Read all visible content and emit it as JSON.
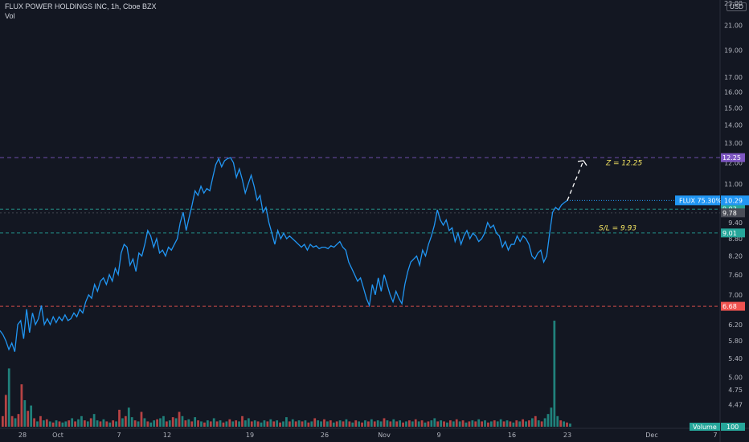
{
  "header": {
    "title": "FLUX POWER HOLDINGS INC, 1h, Cboe BZX",
    "indicator": "Vol",
    "currency": "USD"
  },
  "colors": {
    "background": "#131722",
    "price_line": "#2196f3",
    "vol_up": "#26a69a",
    "vol_down": "#ef5350",
    "resistance": "#7e57c2",
    "entry": "#26a69a",
    "support_low": "#ef5350",
    "annotation": "#f5e663"
  },
  "chart_data": {
    "type": "line",
    "y_axis": {
      "scale": "log",
      "range": [
        4.1,
        23.0
      ],
      "ticks": [
        "23.00",
        "21.00",
        "19.00",
        "17.00",
        "16.00",
        "15.00",
        "14.00",
        "13.00",
        "12.00",
        "11.00",
        "9.40",
        "8.80",
        "8.20",
        "7.60",
        "7.00",
        "6.20",
        "5.80",
        "5.40",
        "5.00",
        "4.75",
        "4.47"
      ]
    },
    "x_axis": {
      "labels": [
        "28",
        "Oct",
        "7",
        "12",
        "19",
        "26",
        "Nov",
        "9",
        "16",
        "23",
        "Dec",
        "7"
      ]
    },
    "series": [
      {
        "values": [
          6.05,
          5.95,
          5.8,
          5.6,
          5.75,
          5.55,
          6.2,
          6.3,
          5.85,
          6.6,
          6.0,
          6.5,
          6.2,
          6.35,
          6.7,
          6.2,
          6.35,
          6.2,
          6.4,
          6.25,
          6.4,
          6.3,
          6.45,
          6.3,
          6.35,
          6.5,
          6.4,
          6.6,
          6.5,
          6.8,
          7.0,
          6.9,
          7.3,
          7.1,
          7.4,
          7.5,
          7.3,
          7.6,
          7.4,
          7.8,
          7.6,
          8.3,
          8.6,
          8.5,
          7.9,
          8.1,
          7.7,
          8.3,
          8.2,
          8.6,
          9.1,
          8.9,
          8.5,
          8.8,
          8.3,
          8.4,
          8.2,
          8.5,
          8.4,
          8.6,
          8.8,
          9.4,
          9.8,
          9.1,
          9.6,
          10.1,
          10.7,
          10.5,
          10.9,
          10.6,
          10.8,
          10.7,
          11.3,
          11.9,
          12.2,
          11.8,
          12.1,
          12.2,
          12.25,
          12.0,
          11.3,
          11.7,
          11.2,
          10.6,
          11.0,
          11.4,
          10.9,
          10.3,
          10.5,
          9.8,
          10.0,
          9.4,
          9.0,
          8.6,
          9.1,
          8.8,
          9.0,
          8.8,
          8.9,
          8.8,
          8.7,
          8.6,
          8.5,
          8.6,
          8.4,
          8.6,
          8.5,
          8.55,
          8.45,
          8.5,
          8.5,
          8.45,
          8.55,
          8.5,
          8.6,
          8.7,
          8.5,
          8.4,
          8.0,
          7.8,
          7.6,
          7.4,
          7.5,
          7.2,
          6.9,
          6.7,
          7.3,
          7.0,
          7.5,
          7.1,
          7.6,
          7.3,
          7.0,
          6.8,
          7.1,
          6.9,
          6.75,
          7.3,
          7.7,
          8.0,
          8.1,
          8.2,
          7.9,
          8.4,
          8.2,
          8.6,
          8.9,
          9.3,
          9.9,
          9.5,
          9.3,
          9.5,
          9.1,
          9.2,
          8.7,
          9.0,
          8.6,
          8.9,
          9.1,
          8.8,
          9.0,
          8.9,
          8.7,
          8.8,
          9.0,
          9.4,
          9.2,
          9.3,
          9.0,
          8.9,
          8.5,
          8.7,
          8.4,
          8.6,
          8.6,
          8.9,
          8.7,
          8.9,
          8.8,
          8.6,
          8.2,
          8.1,
          8.3,
          8.4,
          8.0,
          8.2,
          9.0,
          9.8,
          10.0,
          9.9,
          10.1,
          10.2,
          10.29
        ],
        "color": "#2196f3"
      }
    ],
    "volume": [
      {
        "v": 0.1,
        "up": false
      },
      {
        "v": 0.3,
        "up": false
      },
      {
        "v": 0.55,
        "up": true
      },
      {
        "v": 0.1,
        "up": false
      },
      {
        "v": 0.08,
        "up": true
      },
      {
        "v": 0.12,
        "up": false
      },
      {
        "v": 0.4,
        "up": false
      },
      {
        "v": 0.25,
        "up": true
      },
      {
        "v": 0.15,
        "up": false
      },
      {
        "v": 0.2,
        "up": true
      },
      {
        "v": 0.08,
        "up": false
      },
      {
        "v": 0.05,
        "up": true
      },
      {
        "v": 0.1,
        "up": false
      },
      {
        "v": 0.06,
        "up": true
      },
      {
        "v": 0.07,
        "up": false
      },
      {
        "v": 0.05,
        "up": true
      },
      {
        "v": 0.04,
        "up": false
      },
      {
        "v": 0.06,
        "up": true
      },
      {
        "v": 0.05,
        "up": false
      },
      {
        "v": 0.04,
        "up": true
      },
      {
        "v": 0.05,
        "up": true
      },
      {
        "v": 0.06,
        "up": false
      },
      {
        "v": 0.08,
        "up": true
      },
      {
        "v": 0.05,
        "up": false
      },
      {
        "v": 0.07,
        "up": true
      },
      {
        "v": 0.1,
        "up": true
      },
      {
        "v": 0.06,
        "up": false
      },
      {
        "v": 0.05,
        "up": true
      },
      {
        "v": 0.08,
        "up": false
      },
      {
        "v": 0.12,
        "up": true
      },
      {
        "v": 0.06,
        "up": true
      },
      {
        "v": 0.05,
        "up": false
      },
      {
        "v": 0.07,
        "up": true
      },
      {
        "v": 0.05,
        "up": false
      },
      {
        "v": 0.04,
        "up": true
      },
      {
        "v": 0.06,
        "up": false
      },
      {
        "v": 0.05,
        "up": true
      },
      {
        "v": 0.16,
        "up": false
      },
      {
        "v": 0.08,
        "up": true
      },
      {
        "v": 0.1,
        "up": false
      },
      {
        "v": 0.18,
        "up": true
      },
      {
        "v": 0.09,
        "up": true
      },
      {
        "v": 0.06,
        "up": false
      },
      {
        "v": 0.05,
        "up": true
      },
      {
        "v": 0.14,
        "up": false
      },
      {
        "v": 0.08,
        "up": true
      },
      {
        "v": 0.05,
        "up": false
      },
      {
        "v": 0.04,
        "up": true
      },
      {
        "v": 0.06,
        "up": true
      },
      {
        "v": 0.07,
        "up": false
      },
      {
        "v": 0.08,
        "up": true
      },
      {
        "v": 0.1,
        "up": true
      },
      {
        "v": 0.05,
        "up": false
      },
      {
        "v": 0.06,
        "up": true
      },
      {
        "v": 0.09,
        "up": false
      },
      {
        "v": 0.08,
        "up": true
      },
      {
        "v": 0.14,
        "up": false
      },
      {
        "v": 0.1,
        "up": true
      },
      {
        "v": 0.06,
        "up": false
      },
      {
        "v": 0.07,
        "up": true
      },
      {
        "v": 0.05,
        "up": false
      },
      {
        "v": 0.09,
        "up": true
      },
      {
        "v": 0.06,
        "up": false
      },
      {
        "v": 0.05,
        "up": true
      },
      {
        "v": 0.04,
        "up": false
      },
      {
        "v": 0.06,
        "up": true
      },
      {
        "v": 0.05,
        "up": false
      },
      {
        "v": 0.08,
        "up": true
      },
      {
        "v": 0.05,
        "up": false
      },
      {
        "v": 0.06,
        "up": true
      },
      {
        "v": 0.04,
        "up": false
      },
      {
        "v": 0.05,
        "up": true
      },
      {
        "v": 0.07,
        "up": false
      },
      {
        "v": 0.05,
        "up": true
      },
      {
        "v": 0.06,
        "up": false
      },
      {
        "v": 0.05,
        "up": true
      },
      {
        "v": 0.1,
        "up": false
      },
      {
        "v": 0.06,
        "up": true
      },
      {
        "v": 0.08,
        "up": true
      },
      {
        "v": 0.05,
        "up": false
      },
      {
        "v": 0.06,
        "up": true
      },
      {
        "v": 0.05,
        "up": false
      },
      {
        "v": 0.04,
        "up": true
      },
      {
        "v": 0.06,
        "up": true
      },
      {
        "v": 0.05,
        "up": false
      },
      {
        "v": 0.07,
        "up": true
      },
      {
        "v": 0.05,
        "up": false
      },
      {
        "v": 0.06,
        "up": true
      },
      {
        "v": 0.04,
        "up": false
      },
      {
        "v": 0.05,
        "up": true
      },
      {
        "v": 0.09,
        "up": true
      },
      {
        "v": 0.05,
        "up": false
      },
      {
        "v": 0.07,
        "up": true
      },
      {
        "v": 0.05,
        "up": false
      },
      {
        "v": 0.06,
        "up": true
      },
      {
        "v": 0.05,
        "up": false
      },
      {
        "v": 0.06,
        "up": true
      },
      {
        "v": 0.04,
        "up": false
      },
      {
        "v": 0.05,
        "up": true
      },
      {
        "v": 0.08,
        "up": false
      },
      {
        "v": 0.06,
        "up": true
      },
      {
        "v": 0.05,
        "up": true
      },
      {
        "v": 0.07,
        "up": false
      },
      {
        "v": 0.05,
        "up": true
      },
      {
        "v": 0.06,
        "up": false
      },
      {
        "v": 0.04,
        "up": true
      },
      {
        "v": 0.05,
        "up": false
      },
      {
        "v": 0.06,
        "up": true
      },
      {
        "v": 0.05,
        "up": false
      },
      {
        "v": 0.07,
        "up": true
      },
      {
        "v": 0.05,
        "up": false
      },
      {
        "v": 0.04,
        "up": true
      },
      {
        "v": 0.06,
        "up": false
      },
      {
        "v": 0.05,
        "up": true
      },
      {
        "v": 0.04,
        "up": false
      },
      {
        "v": 0.06,
        "up": true
      },
      {
        "v": 0.05,
        "up": false
      },
      {
        "v": 0.07,
        "up": true
      },
      {
        "v": 0.05,
        "up": false
      },
      {
        "v": 0.06,
        "up": true
      },
      {
        "v": 0.05,
        "up": true
      },
      {
        "v": 0.08,
        "up": false
      },
      {
        "v": 0.06,
        "up": true
      },
      {
        "v": 0.05,
        "up": false
      },
      {
        "v": 0.07,
        "up": true
      },
      {
        "v": 0.05,
        "up": false
      },
      {
        "v": 0.06,
        "up": true
      },
      {
        "v": 0.04,
        "up": false
      },
      {
        "v": 0.05,
        "up": true
      },
      {
        "v": 0.06,
        "up": false
      },
      {
        "v": 0.05,
        "up": true
      },
      {
        "v": 0.07,
        "up": false
      },
      {
        "v": 0.05,
        "up": true
      },
      {
        "v": 0.06,
        "up": false
      },
      {
        "v": 0.04,
        "up": true
      },
      {
        "v": 0.05,
        "up": false
      },
      {
        "v": 0.06,
        "up": true
      },
      {
        "v": 0.08,
        "up": true
      },
      {
        "v": 0.05,
        "up": false
      },
      {
        "v": 0.06,
        "up": true
      },
      {
        "v": 0.05,
        "up": false
      },
      {
        "v": 0.04,
        "up": true
      },
      {
        "v": 0.06,
        "up": false
      },
      {
        "v": 0.05,
        "up": true
      },
      {
        "v": 0.07,
        "up": false
      },
      {
        "v": 0.05,
        "up": true
      },
      {
        "v": 0.06,
        "up": false
      },
      {
        "v": 0.04,
        "up": true
      },
      {
        "v": 0.05,
        "up": false
      },
      {
        "v": 0.06,
        "up": true
      },
      {
        "v": 0.05,
        "up": false
      },
      {
        "v": 0.07,
        "up": true
      },
      {
        "v": 0.05,
        "up": false
      },
      {
        "v": 0.06,
        "up": true
      },
      {
        "v": 0.04,
        "up": false
      },
      {
        "v": 0.05,
        "up": true
      },
      {
        "v": 0.06,
        "up": false
      },
      {
        "v": 0.05,
        "up": true
      },
      {
        "v": 0.07,
        "up": true
      },
      {
        "v": 0.05,
        "up": false
      },
      {
        "v": 0.06,
        "up": true
      },
      {
        "v": 0.05,
        "up": false
      },
      {
        "v": 0.04,
        "up": true
      },
      {
        "v": 0.06,
        "up": false
      },
      {
        "v": 0.05,
        "up": true
      },
      {
        "v": 0.07,
        "up": false
      },
      {
        "v": 0.05,
        "up": true
      },
      {
        "v": 0.06,
        "up": false
      },
      {
        "v": 0.08,
        "up": true
      },
      {
        "v": 0.1,
        "up": false
      },
      {
        "v": 0.06,
        "up": true
      },
      {
        "v": 0.05,
        "up": false
      },
      {
        "v": 0.08,
        "up": true
      },
      {
        "v": 0.12,
        "up": true
      },
      {
        "v": 0.18,
        "up": true
      },
      {
        "v": 1.0,
        "up": true
      },
      {
        "v": 0.1,
        "up": true
      },
      {
        "v": 0.06,
        "up": false
      },
      {
        "v": 0.05,
        "up": true
      },
      {
        "v": 0.04,
        "up": false
      },
      {
        "v": 0.03,
        "up": true
      }
    ],
    "levels": [
      {
        "value": 12.25,
        "label": "12.25",
        "color": "#7e57c2"
      },
      {
        "value": 9.93,
        "label": "9.93",
        "color": "#26a69a"
      },
      {
        "value": 9.78,
        "label": "9.78",
        "color": "#4a4d57"
      },
      {
        "value": 9.01,
        "label": "9.01",
        "color": "#26a69a"
      },
      {
        "value": 6.68,
        "label": "6.68",
        "color": "#ef5350"
      }
    ],
    "last_price": {
      "label": "FLUX 75.30%",
      "value": "10.29",
      "numeric": 10.29
    },
    "annotations": [
      {
        "text": "Z =  12.25",
        "value": 12.0
      },
      {
        "text": "S/L = 9.93",
        "value": 9.2
      }
    ],
    "projection": {
      "from": 10.29,
      "to": 12.1
    },
    "volume_badge": {
      "label": "Volume",
      "value": "100"
    }
  }
}
